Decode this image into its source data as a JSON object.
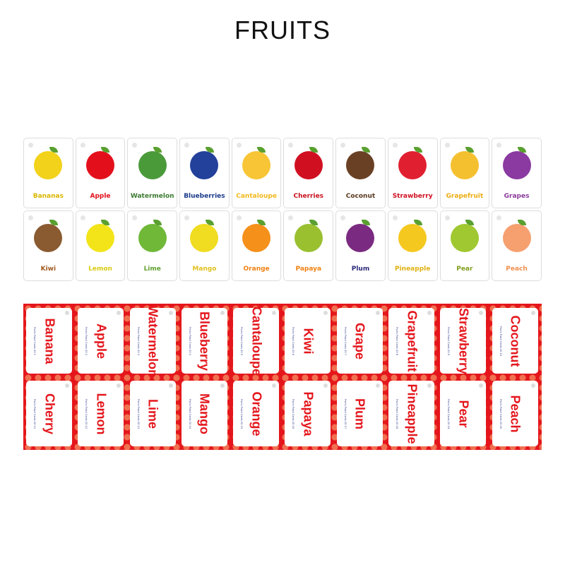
{
  "title": "FRUITS",
  "fronts": [
    [
      {
        "label": "Bananas",
        "color": "#d9b600",
        "fruit_color": "#f2d21a"
      },
      {
        "label": "Apple",
        "color": "#e0101a",
        "fruit_color": "#e3101c"
      },
      {
        "label": "Watermelon",
        "color": "#3a7a30",
        "fruit_color": "#4a9a3a"
      },
      {
        "label": "Blueberries",
        "color": "#1a3a8a",
        "fruit_color": "#23409a"
      },
      {
        "label": "Cantaloupe",
        "color": "#f2b81c",
        "fruit_color": "#f7c535"
      },
      {
        "label": "Cherries",
        "color": "#c8101c",
        "fruit_color": "#d01020"
      },
      {
        "label": "Coconut",
        "color": "#5a3a20",
        "fruit_color": "#6a4024"
      },
      {
        "label": "Strawberry",
        "color": "#d01020",
        "fruit_color": "#e02030"
      },
      {
        "label": "Grapefruit",
        "color": "#ecac10",
        "fruit_color": "#f5c030"
      },
      {
        "label": "Grapes",
        "color": "#8a3a9a",
        "fruit_color": "#8a3aa0"
      }
    ],
    [
      {
        "label": "Kiwi",
        "color": "#a05a20",
        "fruit_color": "#8a5a30"
      },
      {
        "label": "Lemon",
        "color": "#d8cc10",
        "fruit_color": "#f2e418"
      },
      {
        "label": "Lime",
        "color": "#60a030",
        "fruit_color": "#70b838"
      },
      {
        "label": "Mango",
        "color": "#e0c020",
        "fruit_color": "#f0dc20"
      },
      {
        "label": "Orange",
        "color": "#f08010",
        "fruit_color": "#f5901a"
      },
      {
        "label": "Papaya",
        "color": "#f08010",
        "fruit_color": "#9ac030"
      },
      {
        "label": "Plum",
        "color": "#2a2a7a",
        "fruit_color": "#7a2a80"
      },
      {
        "label": "Pineapple",
        "color": "#e0b010",
        "fruit_color": "#f5c820"
      },
      {
        "label": "Pear",
        "color": "#80a020",
        "fruit_color": "#a0c830"
      },
      {
        "label": "Peach",
        "color": "#f09050",
        "fruit_color": "#f6a070"
      }
    ]
  ],
  "backs": [
    [
      {
        "name": "Banana",
        "caption": "Fruits Flash Cards 20 1"
      },
      {
        "name": "Apple",
        "caption": "Fruits Flash Cards 20 2"
      },
      {
        "name": "Watermelon",
        "caption": "Fruits Flash Cards 20 3"
      },
      {
        "name": "Blueberry",
        "caption": "Fruits Flash Cards 20 4"
      },
      {
        "name": "Cantaloupe",
        "caption": "Fruits Flash Cards 20 5"
      },
      {
        "name": "Kiwi",
        "caption": "Fruits Flash Cards 20 6"
      },
      {
        "name": "Grape",
        "caption": "Fruits Flash Cards 20 7"
      },
      {
        "name": "Grapefruit",
        "caption": "Fruits Flash Cards 20 8"
      },
      {
        "name": "Strawberry",
        "caption": "Fruits Flash Cards 20 9"
      },
      {
        "name": "Coconut",
        "caption": "Fruits Flash Cards 20 10"
      }
    ],
    [
      {
        "name": "Cherry",
        "caption": "Fruits Flash Cards 20 11"
      },
      {
        "name": "Lemon",
        "caption": "Fruits Flash Cards 20 12"
      },
      {
        "name": "Lime",
        "caption": "Fruits Flash Cards 20 13"
      },
      {
        "name": "Mango",
        "caption": "Fruits Flash Cards 20 14"
      },
      {
        "name": "Orange",
        "caption": "Fruits Flash Cards 20 15"
      },
      {
        "name": "Papaya",
        "caption": "Fruits Flash Cards 20 16"
      },
      {
        "name": "Plum",
        "caption": "Fruits Flash Cards 20 17"
      },
      {
        "name": "Pineapple",
        "caption": "Fruits Flash Cards 20 18"
      },
      {
        "name": "Pear",
        "caption": "Fruits Flash Cards 20 19"
      },
      {
        "name": "Peach",
        "caption": "Fruits Flash Cards 20 20"
      }
    ]
  ],
  "colors": {
    "back_red": "#e4161c",
    "dot": "#f07050",
    "caption_blue": "#2a3a8a"
  }
}
